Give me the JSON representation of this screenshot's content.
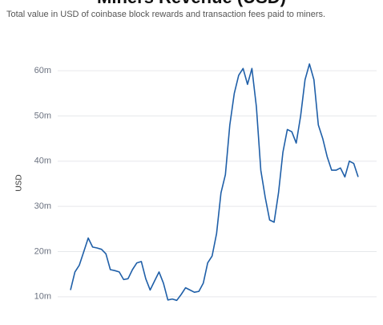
{
  "chart_data": {
    "type": "line",
    "title": "Miners Revenue (USD)",
    "subtitle": "Total value in USD of coinbase block rewards and transaction fees paid to miners.",
    "y_label": "USD",
    "color": "#1f5fa8",
    "grid": true,
    "ylim": [
      5000000,
      65000000
    ],
    "yticks": [
      {
        "value": 10000000,
        "label": "10m"
      },
      {
        "value": 20000000,
        "label": "20m"
      },
      {
        "value": 30000000,
        "label": "30m"
      },
      {
        "value": 40000000,
        "label": "40m"
      },
      {
        "value": 50000000,
        "label": "50m"
      },
      {
        "value": 60000000,
        "label": "60m"
      }
    ],
    "values": [
      11500000,
      15500000,
      17000000,
      20000000,
      23000000,
      21000000,
      20800000,
      20500000,
      19500000,
      16000000,
      15800000,
      15500000,
      13800000,
      14000000,
      16000000,
      17500000,
      17800000,
      14000000,
      11500000,
      13500000,
      15500000,
      13000000,
      9300000,
      9500000,
      9200000,
      10500000,
      12000000,
      11500000,
      11000000,
      11200000,
      13000000,
      17500000,
      19000000,
      24000000,
      33000000,
      37000000,
      48000000,
      55000000,
      59000000,
      60500000,
      57000000,
      60500000,
      52000000,
      38000000,
      32000000,
      27000000,
      26500000,
      33000000,
      42000000,
      47000000,
      46500000,
      44000000,
      50000000,
      58000000,
      61500000,
      58000000,
      48000000,
      45000000,
      41000000,
      38000000,
      38000000,
      38500000,
      36500000,
      40000000,
      39500000,
      36500000
    ]
  }
}
